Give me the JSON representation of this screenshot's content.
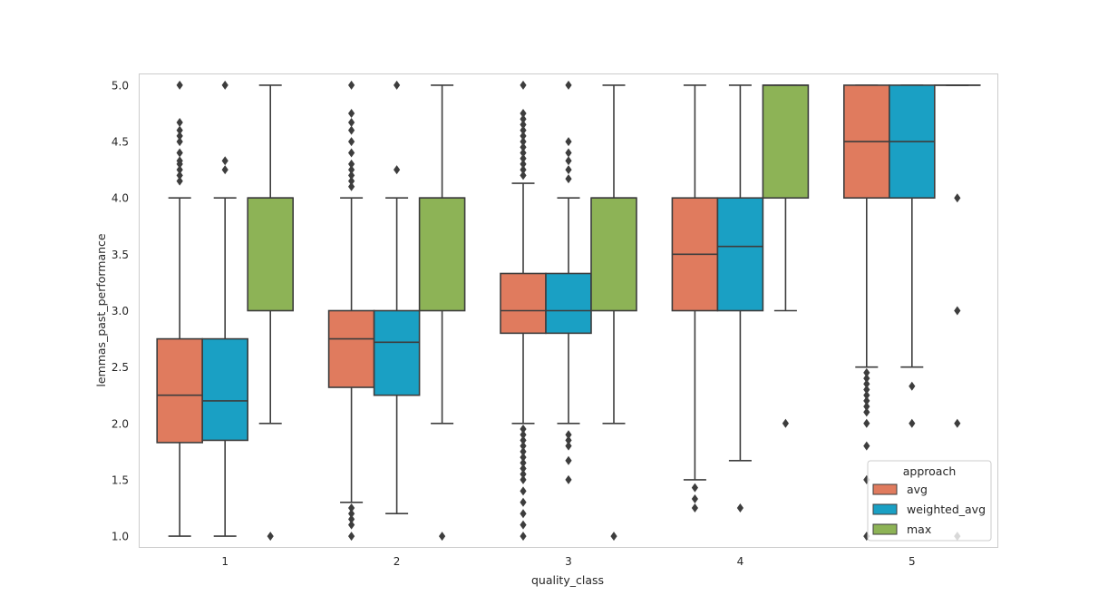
{
  "chart_data": {
    "type": "boxplot",
    "title": "",
    "xlabel": "quality_class",
    "ylabel": "lemmas_past_performance",
    "ylim": [
      0.9,
      5.1
    ],
    "yticks": [
      "1.0",
      "1.5",
      "2.0",
      "2.5",
      "3.0",
      "3.5",
      "4.0",
      "4.5",
      "5.0"
    ],
    "categories": [
      "1",
      "2",
      "3",
      "4",
      "5"
    ],
    "grid": false,
    "legend": {
      "title": "approach",
      "placement": "bottom-right"
    },
    "colors": {
      "avg": "#e07b5e",
      "weighted_avg": "#1aa0c4",
      "max": "#8db356",
      "line": "#3d3d3d",
      "frame": "#cccccc"
    },
    "series": [
      {
        "name": "avg",
        "color": "#e07b5e",
        "boxes": [
          {
            "q1": 1.83,
            "median": 2.25,
            "q3": 2.75,
            "whislo": 1.0,
            "whishi": 4.0,
            "fliers": [
              4.15,
              4.2,
              4.25,
              4.3,
              4.33,
              4.4,
              4.5,
              4.55,
              4.6,
              4.67,
              5.0
            ]
          },
          {
            "q1": 2.32,
            "median": 2.75,
            "q3": 3.0,
            "whislo": 1.3,
            "whishi": 4.0,
            "fliers": [
              1.0,
              1.1,
              1.15,
              1.2,
              1.25,
              4.1,
              4.15,
              4.2,
              4.25,
              4.3,
              4.4,
              4.5,
              4.6,
              4.67,
              4.75,
              5.0
            ]
          },
          {
            "q1": 2.8,
            "median": 3.0,
            "q3": 3.33,
            "whislo": 2.0,
            "whishi": 4.13,
            "fliers": [
              1.0,
              1.1,
              1.2,
              1.3,
              1.4,
              1.5,
              1.55,
              1.6,
              1.65,
              1.7,
              1.75,
              1.8,
              1.85,
              1.9,
              1.95,
              4.2,
              4.25,
              4.3,
              4.35,
              4.4,
              4.45,
              4.5,
              4.55,
              4.6,
              4.65,
              4.7,
              4.75,
              5.0
            ]
          },
          {
            "q1": 3.0,
            "median": 3.5,
            "q3": 4.0,
            "whislo": 1.5,
            "whishi": 5.0,
            "fliers": [
              1.25,
              1.33,
              1.43
            ]
          },
          {
            "q1": 4.0,
            "median": 4.5,
            "q3": 5.0,
            "whislo": 2.5,
            "whishi": 5.0,
            "fliers": [
              1.0,
              1.5,
              1.8,
              2.0,
              2.1,
              2.15,
              2.2,
              2.25,
              2.3,
              2.35,
              2.4,
              2.45
            ]
          }
        ]
      },
      {
        "name": "weighted_avg",
        "color": "#1aa0c4",
        "boxes": [
          {
            "q1": 1.85,
            "median": 2.2,
            "q3": 2.75,
            "whislo": 1.0,
            "whishi": 4.0,
            "fliers": [
              4.25,
              4.33,
              5.0
            ]
          },
          {
            "q1": 2.25,
            "median": 2.72,
            "q3": 3.0,
            "whislo": 1.2,
            "whishi": 4.0,
            "fliers": [
              4.25,
              5.0
            ]
          },
          {
            "q1": 2.8,
            "median": 3.0,
            "q3": 3.33,
            "whislo": 2.0,
            "whishi": 4.0,
            "fliers": [
              1.5,
              1.67,
              1.8,
              1.85,
              1.9,
              4.17,
              4.25,
              4.33,
              4.4,
              4.5,
              5.0
            ]
          },
          {
            "q1": 3.0,
            "median": 3.57,
            "q3": 4.0,
            "whislo": 1.67,
            "whishi": 5.0,
            "fliers": [
              1.25
            ]
          },
          {
            "q1": 4.0,
            "median": 4.5,
            "q3": 5.0,
            "whislo": 2.5,
            "whishi": 5.0,
            "fliers": [
              2.0,
              2.33
            ]
          }
        ]
      },
      {
        "name": "max",
        "color": "#8db356",
        "boxes": [
          {
            "q1": 3.0,
            "median": 4.0,
            "q3": 4.0,
            "whislo": 2.0,
            "whishi": 5.0,
            "fliers": [
              1.0
            ]
          },
          {
            "q1": 3.0,
            "median": 4.0,
            "q3": 4.0,
            "whislo": 2.0,
            "whishi": 5.0,
            "fliers": [
              1.0
            ]
          },
          {
            "q1": 3.0,
            "median": 4.0,
            "q3": 4.0,
            "whislo": 2.0,
            "whishi": 5.0,
            "fliers": [
              1.0
            ]
          },
          {
            "q1": 4.0,
            "median": 5.0,
            "q3": 5.0,
            "whislo": 3.0,
            "whishi": 5.0,
            "fliers": [
              2.0
            ]
          },
          {
            "q1": 5.0,
            "median": 5.0,
            "q3": 5.0,
            "whislo": 5.0,
            "whishi": 5.0,
            "fliers": [
              1.0,
              2.0,
              3.0,
              4.0
            ]
          }
        ]
      }
    ]
  }
}
